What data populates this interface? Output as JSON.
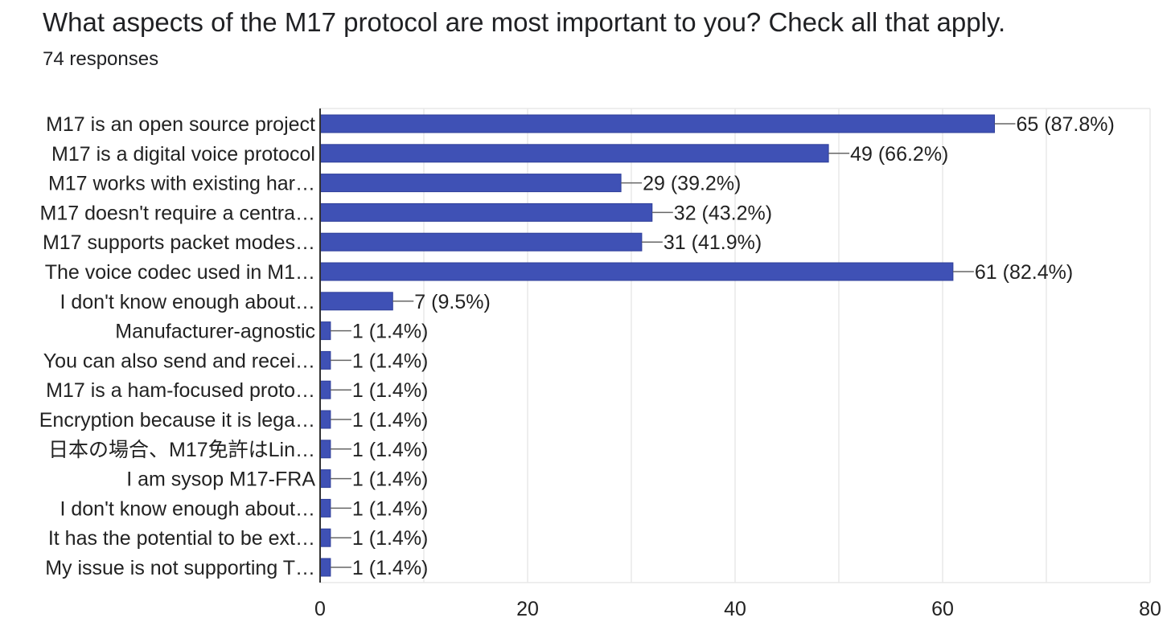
{
  "header": {
    "question": "What aspects of the M17 protocol are most important to you? Check all that apply.",
    "responses": "74 responses"
  },
  "colors": {
    "bar": "#3f51b5",
    "grid": "#e8e8e8",
    "axis": "#333333",
    "leader": "#666666",
    "text": "#222222"
  },
  "chart_data": {
    "type": "bar",
    "orientation": "horizontal",
    "categories": [
      "M17 is an open source project",
      "M17 is a digital voice protocol",
      "M17 works with existing har…",
      "M17 doesn't require a centra…",
      "M17 supports packet modes…",
      "The voice codec used in M1…",
      "I don't know enough about…",
      "Manufacturer-agnostic",
      "You can also send and recei…",
      "M17 is a ham-focused proto…",
      "Encryption because it is lega…",
      "日本の場合、M17免許はLin…",
      "I am sysop M17-FRA",
      "I don't know enough about…",
      "It has the potential to be ext…",
      "My issue is not supporting T…"
    ],
    "values": [
      65,
      49,
      29,
      32,
      31,
      61,
      7,
      1,
      1,
      1,
      1,
      1,
      1,
      1,
      1,
      1
    ],
    "data_labels": [
      "65 (87.8%)",
      "49 (66.2%)",
      "29 (39.2%)",
      "32 (43.2%)",
      "31 (41.9%)",
      "61 (82.4%)",
      "7 (9.5%)",
      "1 (1.4%)",
      "1 (1.4%)",
      "1 (1.4%)",
      "1 (1.4%)",
      "1 (1.4%)",
      "1 (1.4%)",
      "1 (1.4%)",
      "1 (1.4%)",
      "1 (1.4%)"
    ],
    "xlim": [
      0,
      80
    ],
    "xticks": [
      0,
      20,
      40,
      60,
      80
    ],
    "grid": true,
    "legend": "none"
  }
}
